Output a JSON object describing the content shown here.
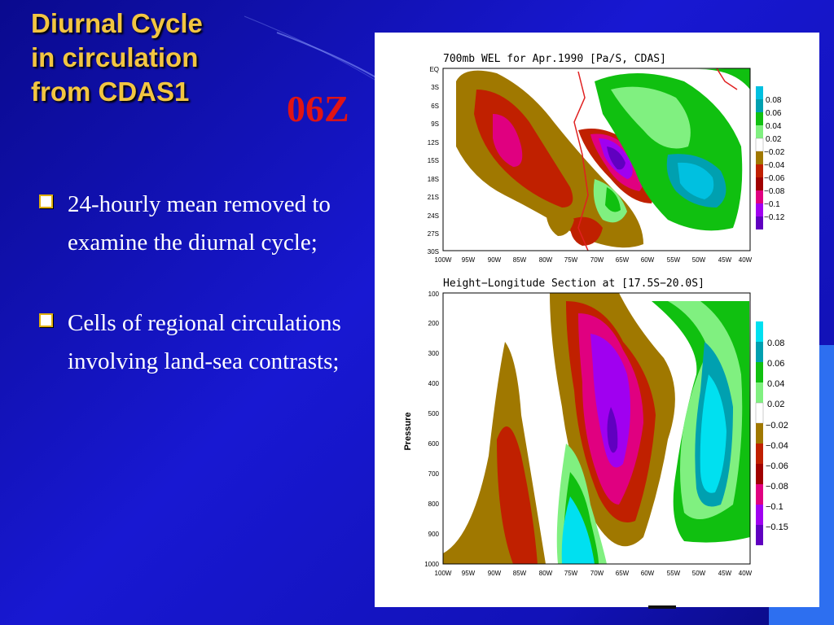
{
  "slide": {
    "title_lines": [
      "Diurnal Cycle",
      "in circulation",
      "from CDAS1"
    ],
    "time_tag": "06Z",
    "bullets": [
      "24-hourly mean removed to examine the diurnal cycle;",
      "Cells of regional circulations involving land-sea contrasts;"
    ]
  },
  "colors": {
    "title": "#f2c542",
    "time_tag": "#e01414",
    "background": "#1515c8"
  },
  "chart_data": [
    {
      "type": "heatmap",
      "title": "700mb WEL for Apr.1990 [Pa/S, CDAS]",
      "x_ticks": [
        "100W",
        "95W",
        "90W",
        "85W",
        "80W",
        "75W",
        "70W",
        "65W",
        "60W",
        "55W",
        "50W",
        "45W",
        "40W"
      ],
      "y_ticks": [
        "EQ",
        "3S",
        "6S",
        "9S",
        "12S",
        "15S",
        "18S",
        "21S",
        "24S",
        "27S",
        "30S"
      ],
      "legend_levels": [
        "0.08",
        "0.06",
        "0.04",
        "0.02",
        "−0.02",
        "−0.04",
        "−0.06",
        "−0.08",
        "−0.1",
        "−0.12"
      ],
      "legend_colors": [
        "#00c0e0",
        "#00a0b0",
        "#10c010",
        "#80f080",
        "#a07800",
        "#c02000",
        "#a00000",
        "#e00080",
        "#a000f0",
        "#6000c0"
      ],
      "legend_placement": "right"
    },
    {
      "type": "heatmap",
      "title": "Height−Longitude Section at [17.5S−20.0S]",
      "ylabel": "Pressure",
      "x_ticks": [
        "100W",
        "95W",
        "90W",
        "85W",
        "80W",
        "75W",
        "70W",
        "65W",
        "60W",
        "55W",
        "50W",
        "45W",
        "40W"
      ],
      "y_ticks": [
        "100",
        "200",
        "300",
        "400",
        "500",
        "600",
        "700",
        "800",
        "900",
        "1000"
      ],
      "legend_levels": [
        "0.08",
        "0.06",
        "0.04",
        "0.02",
        "−0.02",
        "−0.04",
        "−0.06",
        "−0.08",
        "−0.1",
        "−0.15"
      ],
      "legend_colors": [
        "#00e0f0",
        "#00a0b0",
        "#10c010",
        "#80f080",
        "#a07800",
        "#c02000",
        "#a00000",
        "#e00080",
        "#a000f0",
        "#6000c0"
      ],
      "legend_placement": "right"
    }
  ]
}
